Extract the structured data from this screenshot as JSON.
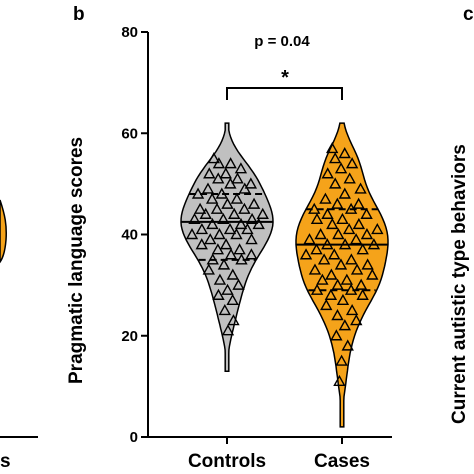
{
  "panel_labels": {
    "center": "b",
    "right": "c"
  },
  "neighbor_text": {
    "right_ylabel": "Current autistic type behaviors",
    "left_xlabel_fragment": "s"
  },
  "chart_data": {
    "type": "violin",
    "ylabel": "Pragmatic language scores",
    "ylim": [
      0,
      80
    ],
    "yticks": [
      0,
      20,
      40,
      60,
      80
    ],
    "categories": [
      "Controls",
      "Cases"
    ],
    "annotation": {
      "pvalue": "p = 0.04",
      "significance": "*"
    },
    "series": [
      {
        "name": "Controls",
        "color": "#c0c0c0",
        "range": [
          13,
          62
        ],
        "median": 42.5,
        "quartiles": [
          35,
          48
        ],
        "points": [
          55,
          54,
          54,
          53,
          52,
          52,
          51,
          51,
          50,
          50,
          49,
          49,
          48,
          48,
          47,
          47,
          46,
          46,
          45,
          45,
          45,
          44,
          44,
          44,
          43,
          43,
          43,
          42,
          42,
          42,
          41,
          41,
          41,
          40,
          40,
          40,
          39,
          39,
          38,
          38,
          37,
          37,
          36,
          36,
          35,
          35,
          34,
          33,
          32,
          31,
          30,
          29,
          28,
          27,
          25,
          23,
          21
        ]
      },
      {
        "name": "Cases",
        "color": "#f5a31a",
        "range": [
          2,
          62
        ],
        "median": 38,
        "quartiles": [
          29,
          45
        ],
        "points": [
          57,
          56,
          55,
          54,
          53,
          52,
          51,
          50,
          49,
          48,
          47,
          46,
          46,
          45,
          45,
          44,
          44,
          43,
          43,
          42,
          42,
          41,
          41,
          40,
          40,
          40,
          39,
          39,
          38,
          38,
          38,
          37,
          37,
          36,
          36,
          35,
          35,
          34,
          34,
          33,
          33,
          32,
          32,
          31,
          31,
          30,
          30,
          29,
          29,
          28,
          28,
          27,
          26,
          25,
          24,
          23,
          22,
          20,
          18,
          15,
          11
        ]
      }
    ]
  }
}
